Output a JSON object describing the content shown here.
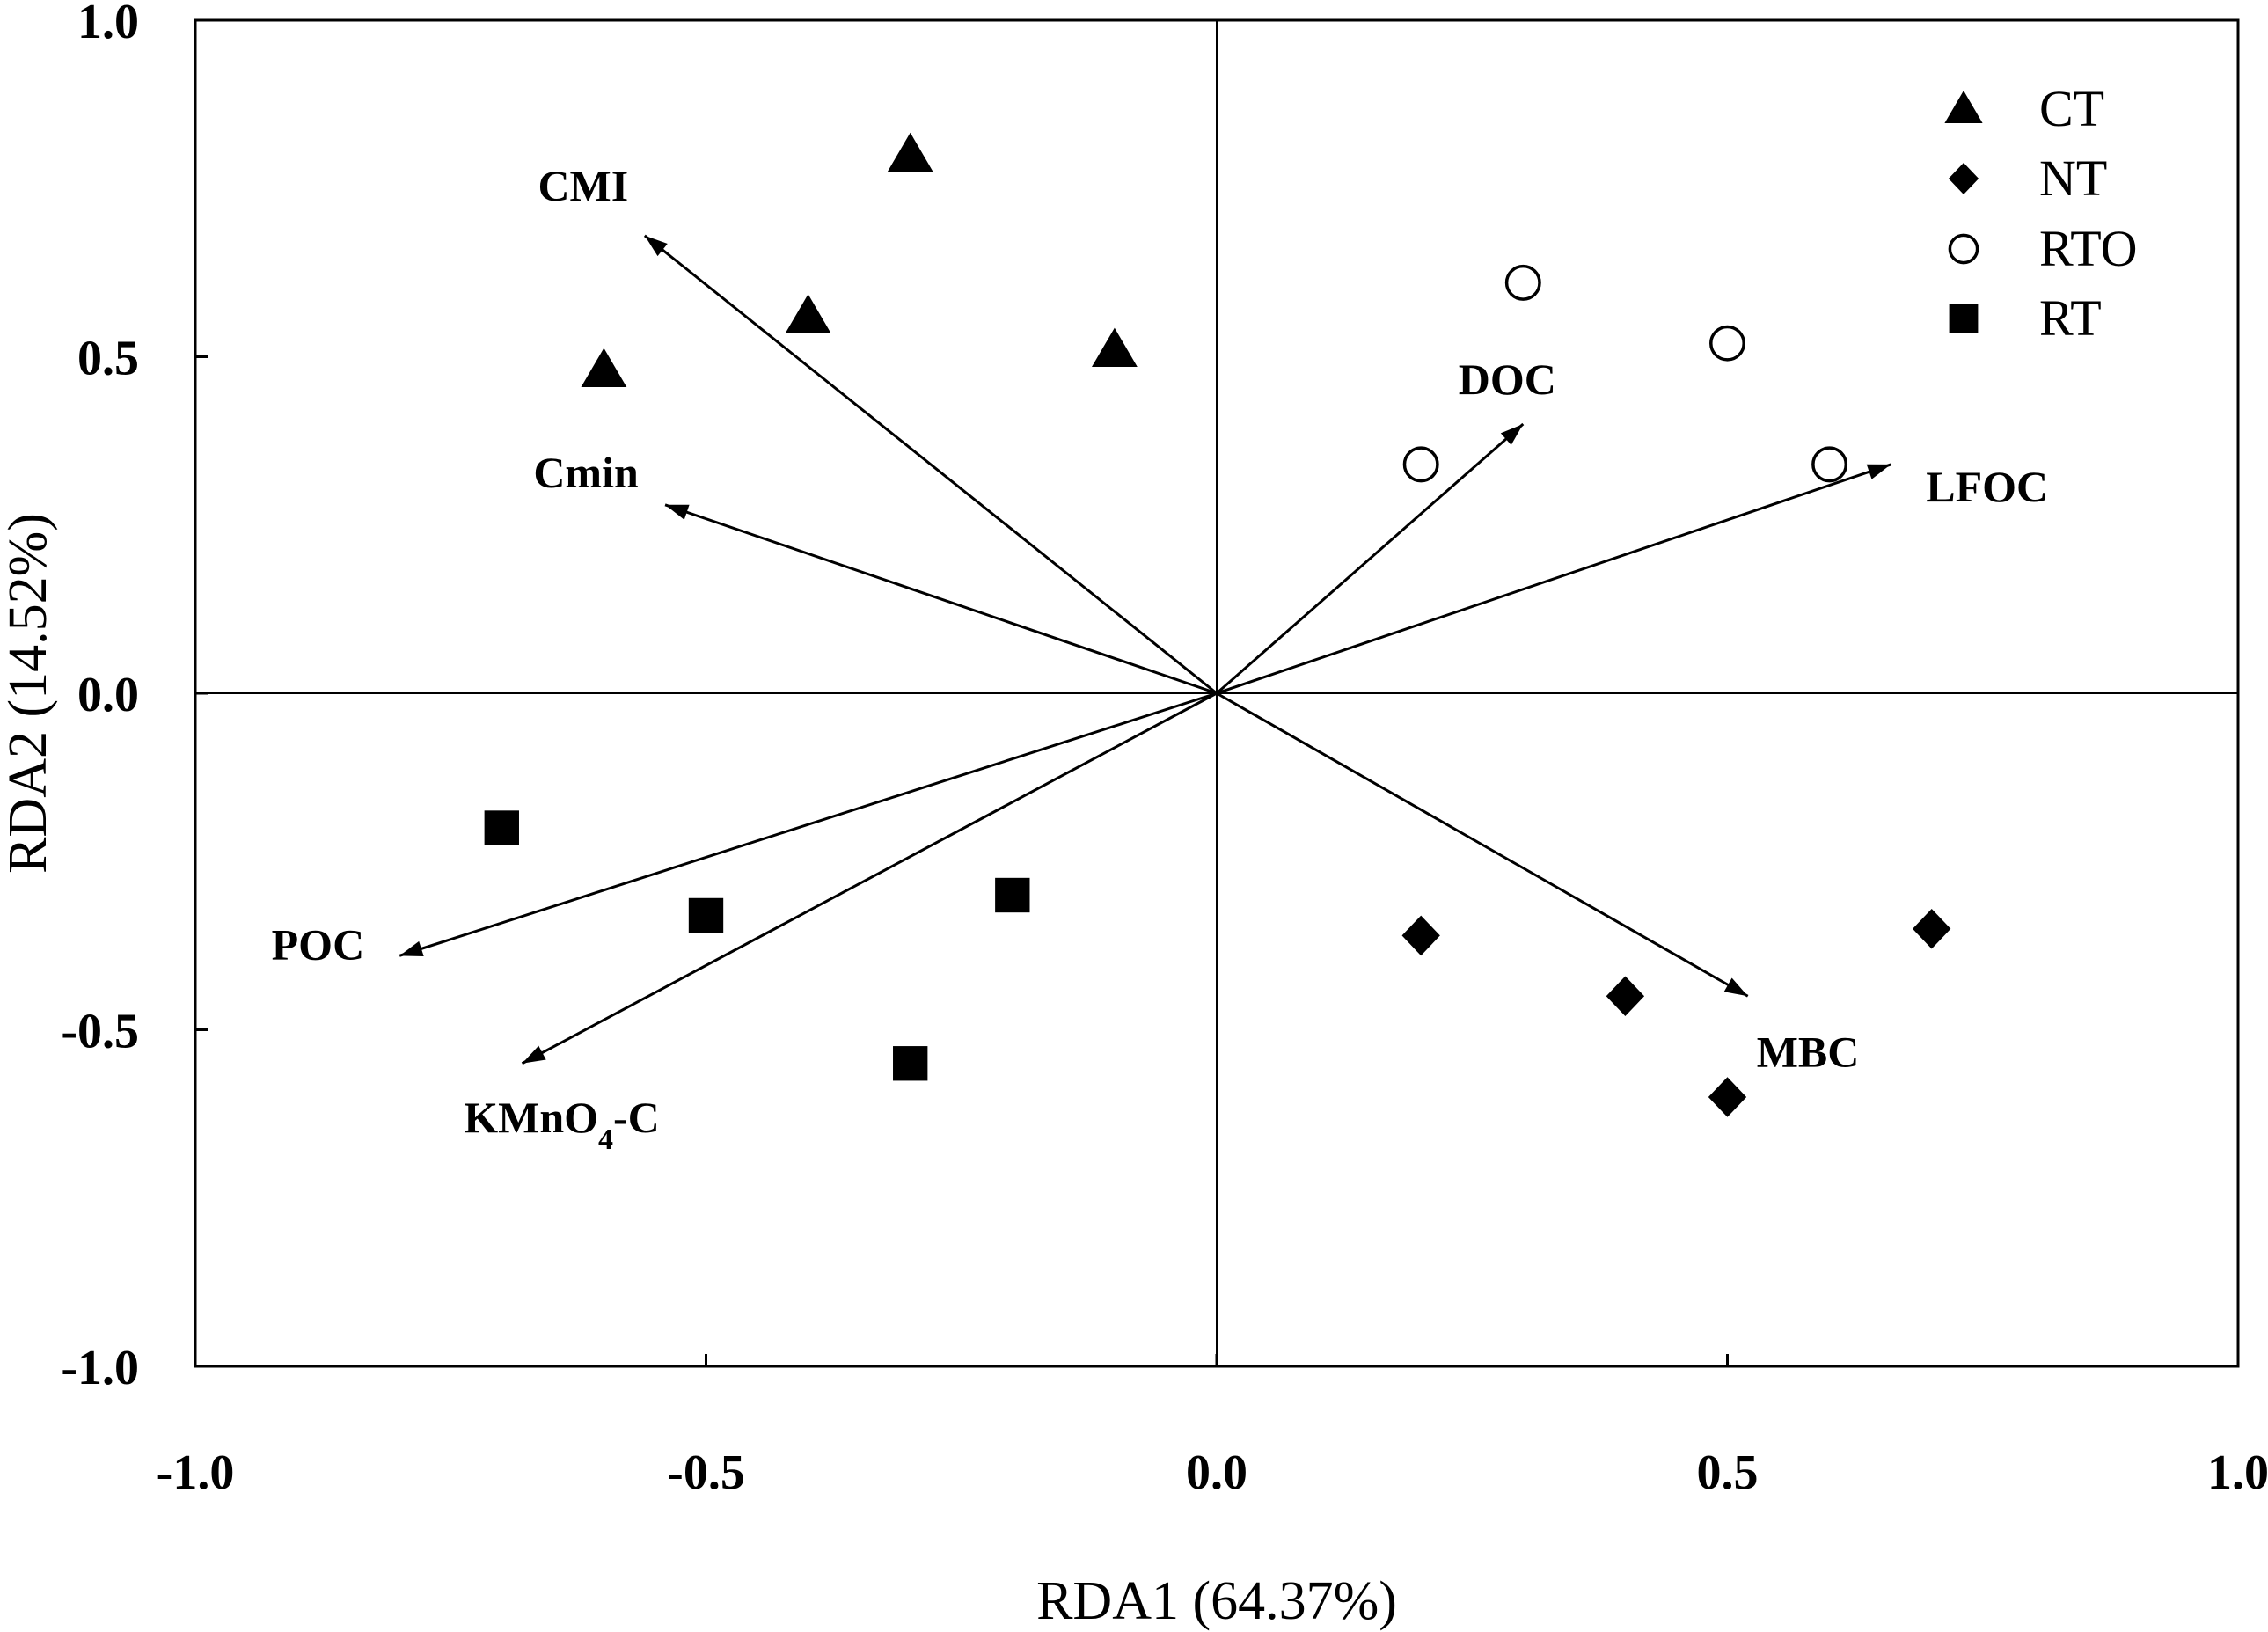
{
  "chart_data": {
    "type": "scatter",
    "xlabel": "RDA1 (64.37%)",
    "ylabel": "RDA2 (14.52%)",
    "xlim": [
      -1.0,
      1.0
    ],
    "ylim": [
      -1.0,
      1.0
    ],
    "x_ticks": [
      "-1.0",
      "-0.5",
      "0.0",
      "0.5",
      "1.0"
    ],
    "y_ticks": [
      "1.0",
      "0.5",
      "0.0",
      "-0.5",
      "-1.0"
    ],
    "grid": false,
    "legend_position": "top-right",
    "series": [
      {
        "name": "CT",
        "marker": "triangle",
        "points": [
          [
            -0.6,
            0.48
          ],
          [
            -0.4,
            0.56
          ],
          [
            -0.3,
            0.8
          ],
          [
            -0.1,
            0.51
          ]
        ]
      },
      {
        "name": "NT",
        "marker": "diamond",
        "points": [
          [
            0.2,
            -0.36
          ],
          [
            0.4,
            -0.45
          ],
          [
            0.5,
            -0.6
          ],
          [
            0.7,
            -0.35
          ]
        ]
      },
      {
        "name": "RTO",
        "marker": "open-circle",
        "points": [
          [
            0.2,
            0.34
          ],
          [
            0.3,
            0.61
          ],
          [
            0.5,
            0.52
          ],
          [
            0.6,
            0.34
          ]
        ]
      },
      {
        "name": "RT",
        "marker": "square",
        "points": [
          [
            -0.7,
            -0.2
          ],
          [
            -0.5,
            -0.33
          ],
          [
            -0.3,
            -0.55
          ],
          [
            -0.2,
            -0.3
          ]
        ]
      }
    ],
    "vectors": [
      {
        "name": "CMI",
        "x": -0.56,
        "y": 0.68
      },
      {
        "name": "Cmin",
        "x": -0.54,
        "y": 0.28
      },
      {
        "name": "DOC",
        "x": 0.3,
        "y": 0.4
      },
      {
        "name": "LFOC",
        "x": 0.66,
        "y": 0.34
      },
      {
        "name": "MBC",
        "x": 0.52,
        "y": -0.45
      },
      {
        "name": "POC",
        "x": -0.8,
        "y": -0.39
      },
      {
        "name": "KMnO4-C",
        "x": -0.68,
        "y": -0.55
      }
    ]
  }
}
